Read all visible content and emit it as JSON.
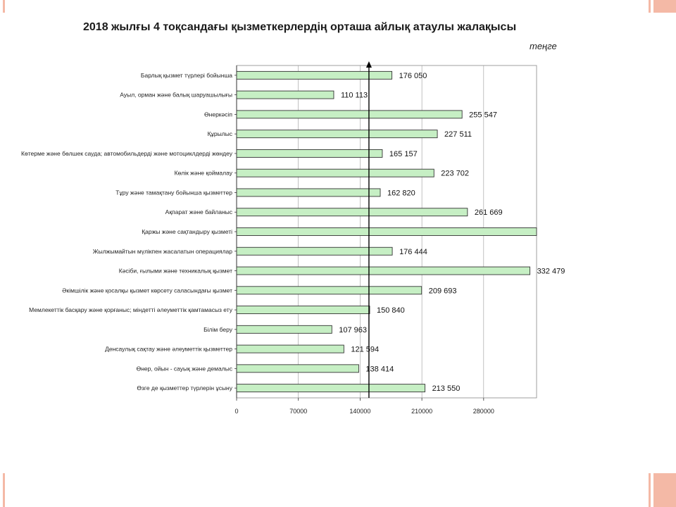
{
  "title": "2018 жылғы 4 тоқсандағы қызметкерлердің орташа айлық атаулы жалақысы",
  "unit": "теңге",
  "colors": {
    "bar_fill": "#c6efc4",
    "bar_stroke": "#333333",
    "accent": "#f4b9a6"
  },
  "chart_data": {
    "type": "bar",
    "orientation": "horizontal",
    "title": "2018 жылғы 4 тоқсандағы қызметкерлердің орташа айлық атаулы жалақысы",
    "unit": "теңге",
    "categories": [
      "Барлық қызмет түрлері бойынша",
      "Ауыл, орман және балық шаруашылығы",
      "Өнеркәсіп",
      "Құрылыс",
      "Көтерме және бөлшек сауда; автомобильдерді және мотоциклдерді жөндеу",
      "Көлік және қоймалау",
      "Тұру және тамақтану бойынша қызметтер",
      "Ақпарат және байланыс",
      "Қаржы және сақтандыру қызметі",
      "Жылжымайтын мүлікпен жасалатын операциялар",
      "Кәсіби, ғылыми және техникалық қызмет",
      "Әкімшілік және қосалқы қызмет көрсету саласындағы қызмет",
      "Мемлекеттік басқару және қорғаныс; міндетті әлеуметтік қамтамасыз ету",
      "Білім беру",
      "Денсаулық сақтау және әлеуметтік қызметтер",
      "Өнер, ойын - сауық және демалыс",
      "Өзге де қызметтер түрлерін ұсыну"
    ],
    "values": [
      176050,
      110113,
      255547,
      227511,
      165157,
      223702,
      162820,
      261669,
      340000,
      176444,
      332479,
      209693,
      150840,
      107963,
      121594,
      138414,
      213550
    ],
    "value_labels": [
      "176 050",
      "110 113",
      "255 547",
      "227 511",
      "165 157",
      "223 702",
      "162 820",
      "261 669",
      "",
      "176 444",
      "332 479",
      "209 693",
      "150 840",
      "107 963",
      "121 594",
      "138 414",
      "213 550"
    ],
    "xlim": [
      0,
      340000
    ],
    "xticks": [
      0,
      70000,
      140000,
      210000,
      280000
    ],
    "xtick_labels": [
      "0",
      "70000",
      "140000",
      "210000",
      "280000"
    ],
    "reference_line": 150000,
    "grid": "vertical"
  }
}
